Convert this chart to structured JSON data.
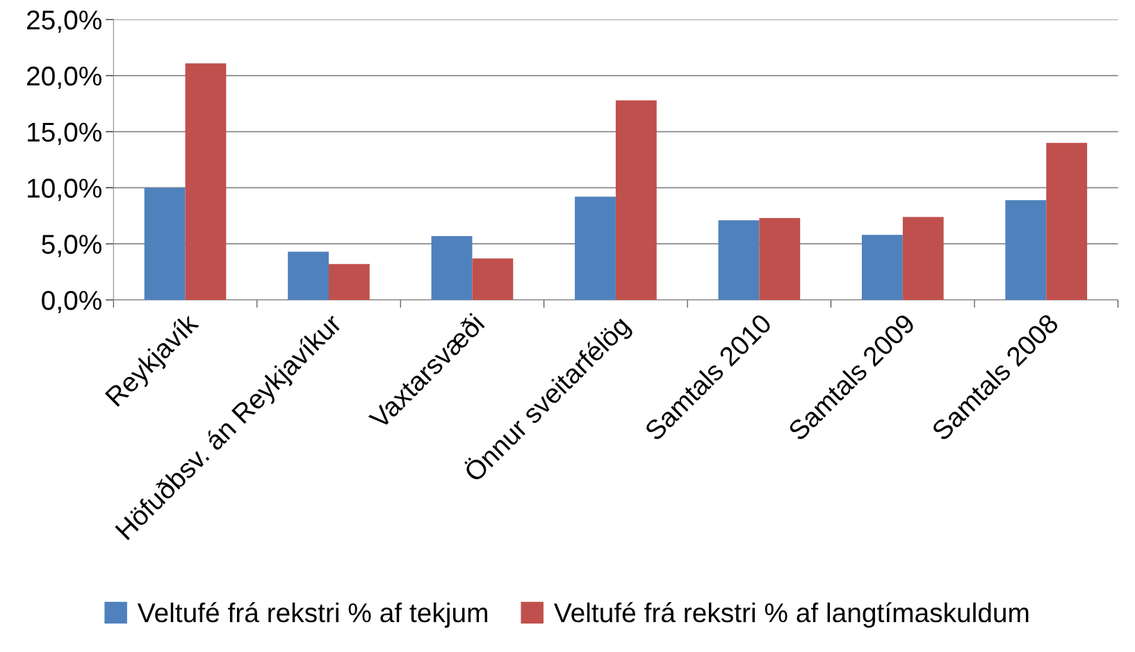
{
  "chart_data": {
    "type": "bar",
    "categories": [
      "Reykjavík",
      "Höfuðbsv. án Reykjavíkur",
      "Vaxtarsvæði",
      "Önnur sveitarfélög",
      "Samtals 2010",
      "Samtals 2009",
      "Samtals 2008"
    ],
    "series": [
      {
        "name": "Veltufé frá rekstri % af tekjum",
        "color": "#4f81bd",
        "values": [
          10.0,
          4.3,
          5.7,
          9.2,
          7.1,
          5.8,
          8.9
        ]
      },
      {
        "name": "Veltufé frá rekstri % af langtímaskuldum",
        "color": "#c0504d",
        "values": [
          21.1,
          3.2,
          3.7,
          17.8,
          7.3,
          7.4,
          14.0
        ]
      }
    ],
    "ylim": [
      0,
      25
    ],
    "yticks": [
      {
        "value": 0,
        "label": "0,0%"
      },
      {
        "value": 5,
        "label": "5,0%"
      },
      {
        "value": 10,
        "label": "10,0%"
      },
      {
        "value": 15,
        "label": "15,0%"
      },
      {
        "value": 20,
        "label": "20,0%"
      },
      {
        "value": 25,
        "label": "25,0%"
      }
    ],
    "grid": "y",
    "legend": "bottom"
  }
}
